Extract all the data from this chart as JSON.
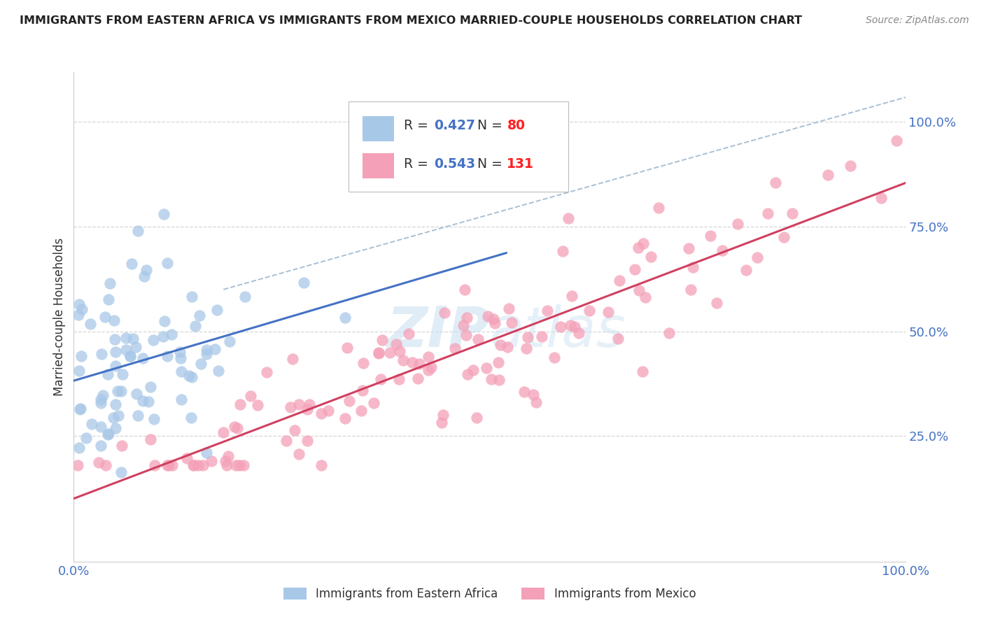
{
  "title": "IMMIGRANTS FROM EASTERN AFRICA VS IMMIGRANTS FROM MEXICO MARRIED-COUPLE HOUSEHOLDS CORRELATION CHART",
  "source": "Source: ZipAtlas.com",
  "ylabel": "Married-couple Households",
  "legend_label1": "Immigrants from Eastern Africa",
  "legend_label2": "Immigrants from Mexico",
  "R1": 0.427,
  "N1": 80,
  "R2": 0.543,
  "N2": 131,
  "color_blue": "#a8c8e8",
  "color_pink": "#f4a0b8",
  "line_color_blue": "#4472c4",
  "line_color_pink": "#d04060",
  "title_color": "#222222",
  "source_color": "#888888",
  "watermark_color": "#c8dff0",
  "background_color": "#ffffff",
  "grid_color": "#cccccc",
  "tick_color": "#4472c4",
  "xlim": [
    0.0,
    1.0
  ],
  "ylim": [
    -0.05,
    1.12
  ],
  "yticks": [
    0.25,
    0.5,
    0.75,
    1.0
  ],
  "ytick_labels": [
    "25.0%",
    "50.0%",
    "75.0%",
    "100.0%"
  ],
  "xticks": [
    0.0,
    1.0
  ],
  "xtick_labels": [
    "0.0%",
    "100.0%"
  ]
}
